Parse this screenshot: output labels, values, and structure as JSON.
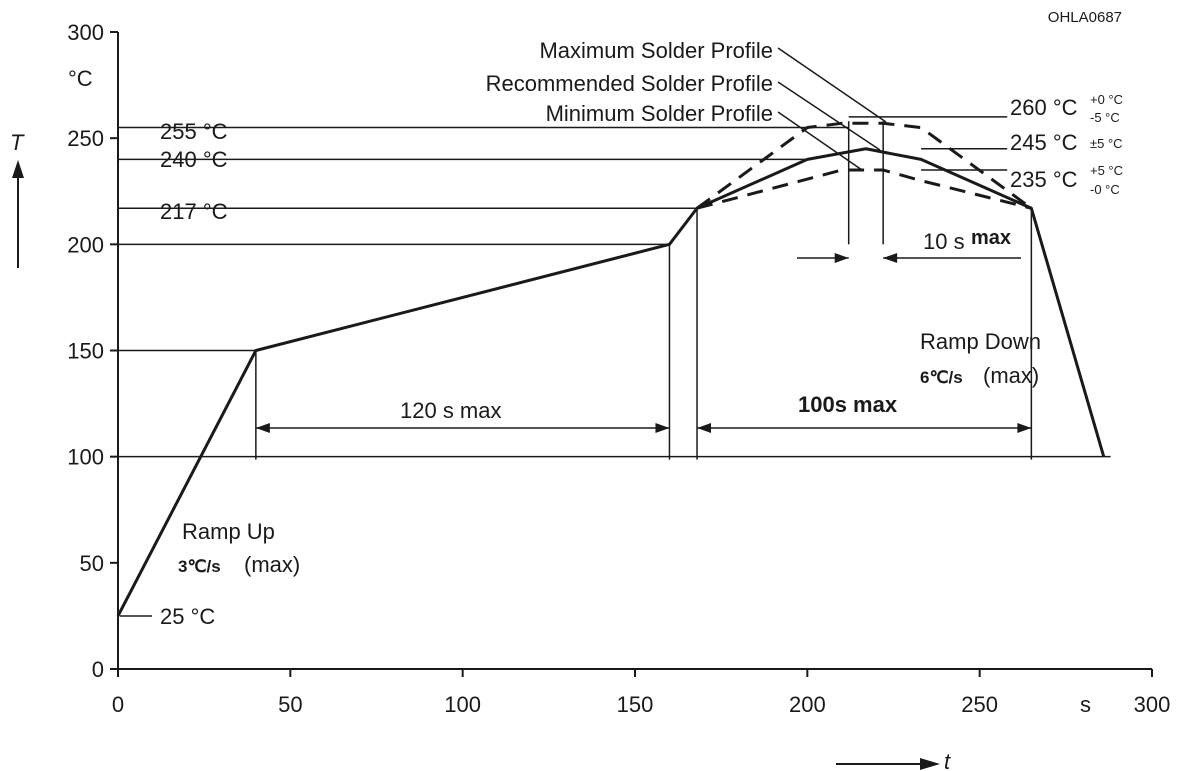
{
  "figure_id": "OHLA0687",
  "chart_data": {
    "type": "line",
    "xlabel": "t",
    "ylabel": "T",
    "x_unit": "s",
    "y_unit": "°C",
    "xlim": [
      0,
      300
    ],
    "ylim": [
      0,
      300
    ],
    "x_ticks": [
      0,
      50,
      100,
      150,
      200,
      250,
      300
    ],
    "y_ticks": [
      0,
      50,
      100,
      150,
      200,
      250,
      300
    ],
    "series": [
      {
        "name": "Recommended Solder Profile",
        "style": "solid",
        "points": [
          [
            0,
            25
          ],
          [
            40,
            150
          ],
          [
            160,
            200
          ],
          [
            168,
            217
          ],
          [
            200,
            240
          ],
          [
            217,
            245
          ],
          [
            233,
            240
          ],
          [
            265,
            217
          ],
          [
            286,
            100
          ]
        ]
      },
      {
        "name": "Maximum Solder Profile",
        "style": "dashed",
        "points": [
          [
            168,
            217
          ],
          [
            200,
            255
          ],
          [
            210,
            257
          ],
          [
            222,
            257
          ],
          [
            233,
            255
          ],
          [
            265,
            217
          ]
        ]
      },
      {
        "name": "Minimum Solder Profile",
        "style": "dashed",
        "points": [
          [
            168,
            217
          ],
          [
            210,
            235
          ],
          [
            222,
            235
          ],
          [
            233,
            230
          ],
          [
            265,
            217
          ]
        ]
      }
    ],
    "reference_lines": [
      {
        "y": 255,
        "x_start": 0,
        "x_end": 212,
        "label": "255 °C"
      },
      {
        "y": 240,
        "x_start": 0,
        "x_end": 200,
        "label": "240 °C"
      },
      {
        "y": 217,
        "x_start": 0,
        "x_end": 168,
        "label": "217 °C"
      },
      {
        "y": 200,
        "x_start": 0,
        "x_end": 160
      },
      {
        "y": 150,
        "x_start": 0,
        "x_end": 40
      },
      {
        "y": 100,
        "x_start": 0,
        "x_end": 288
      },
      {
        "y": 260,
        "x_start": 212,
        "x_end": 258,
        "label": "260 °C",
        "sup": "+0 °C",
        "sub": "-5 °C"
      },
      {
        "y": 245,
        "x_start": 233,
        "x_end": 258,
        "label": "245 °C",
        "tol": "±5 °C"
      },
      {
        "y": 235,
        "x_start": 233,
        "x_end": 258,
        "label": "235 °C",
        "sup": "+5 °C",
        "sub": "-0 °C"
      }
    ],
    "annotations": {
      "y25": "25 °C",
      "ramp_up_title": "Ramp Up",
      "ramp_up_rate": "3℃/s",
      "ramp_up_max": "(max)",
      "ramp_down_title": "Ramp Down",
      "ramp_down_rate": "6℃/s",
      "ramp_down_max": "(max)",
      "dim_120": "120 s max",
      "dim_100": "100s max",
      "dim_10_a": "10 s",
      "dim_10_b": "max",
      "legend_max": "Maximum Solder Profile",
      "legend_rec": "Recommended Solder Profile",
      "legend_min": "Minimum Solder Profile"
    }
  }
}
